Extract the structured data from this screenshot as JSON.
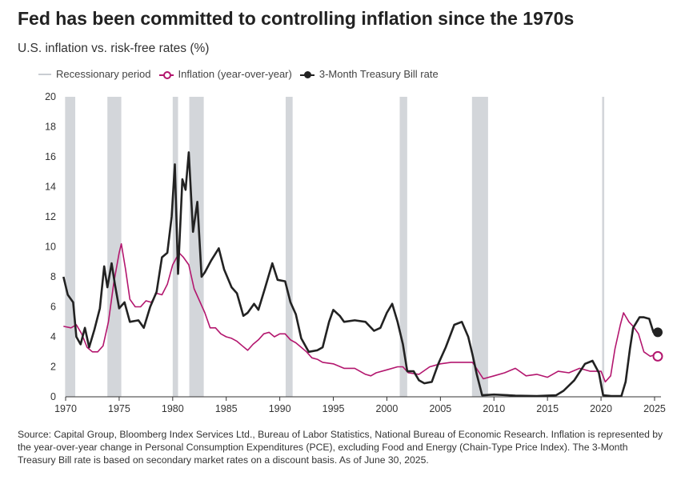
{
  "title": "Fed has been committed to controlling inflation since the 1970s",
  "subtitle": "U.S. inflation vs. risk-free rates (%)",
  "legend": {
    "recession": "Recessionary period",
    "inflation": "Inflation (year-over-year)",
    "tbill": "3-Month Treasury Bill rate"
  },
  "source": "Source: Capital Group, Bloomberg Index Services Ltd., Bureau of Labor Statistics, National Bureau of Economic Research. Inflation is represented by the year-over-year change in Personal Consumption Expenditures (PCE), excluding Food and Energy (Chain-Type Price Index). The 3-Month Treasury Bill rate is based on secondary market rates on a discount basis. As of June 30, 2025.",
  "colors": {
    "inflation": "#b3166e",
    "tbill": "#222222",
    "recession": "#d3d6da",
    "axis": "#333333"
  },
  "chart_data": {
    "type": "line",
    "xlim": [
      1970,
      2025.6
    ],
    "ylim": [
      0,
      20
    ],
    "xticks": [
      1970,
      1975,
      1980,
      1985,
      1990,
      1995,
      2000,
      2005,
      2010,
      2015,
      2020,
      2025
    ],
    "yticks": [
      0,
      2,
      4,
      6,
      8,
      10,
      12,
      14,
      16,
      18,
      20
    ],
    "grid": false,
    "legend_position": "top-left",
    "recessions": [
      [
        1969.95,
        1970.9
      ],
      [
        1973.9,
        1975.2
      ],
      [
        1980.0,
        1980.5
      ],
      [
        1981.55,
        1982.9
      ],
      [
        1990.55,
        1991.2
      ],
      [
        2001.2,
        2001.9
      ],
      [
        2007.95,
        2009.45
      ],
      [
        2020.1,
        2020.3
      ]
    ],
    "series": [
      {
        "name": "Inflation (year-over-year)",
        "end_marker": "open-circle",
        "points": [
          [
            1969.8,
            4.7
          ],
          [
            1970.5,
            4.6
          ],
          [
            1971.0,
            4.8
          ],
          [
            1971.5,
            4.2
          ],
          [
            1972.0,
            3.3
          ],
          [
            1972.5,
            3.0
          ],
          [
            1973.0,
            3.0
          ],
          [
            1973.5,
            3.4
          ],
          [
            1974.0,
            5.0
          ],
          [
            1974.5,
            7.6
          ],
          [
            1975.0,
            9.6
          ],
          [
            1975.2,
            10.2
          ],
          [
            1975.6,
            8.5
          ],
          [
            1976.0,
            6.5
          ],
          [
            1976.5,
            6.0
          ],
          [
            1977.0,
            6.0
          ],
          [
            1977.5,
            6.4
          ],
          [
            1978.0,
            6.3
          ],
          [
            1978.5,
            6.9
          ],
          [
            1979.0,
            6.8
          ],
          [
            1979.5,
            7.5
          ],
          [
            1980.0,
            8.8
          ],
          [
            1980.6,
            9.6
          ],
          [
            1981.0,
            9.3
          ],
          [
            1981.5,
            8.8
          ],
          [
            1982.0,
            7.2
          ],
          [
            1982.5,
            6.4
          ],
          [
            1983.0,
            5.6
          ],
          [
            1983.5,
            4.6
          ],
          [
            1984.0,
            4.6
          ],
          [
            1984.5,
            4.2
          ],
          [
            1985.0,
            4.0
          ],
          [
            1985.5,
            3.9
          ],
          [
            1986.0,
            3.7
          ],
          [
            1986.5,
            3.4
          ],
          [
            1987.0,
            3.1
          ],
          [
            1987.5,
            3.5
          ],
          [
            1988.0,
            3.8
          ],
          [
            1988.5,
            4.2
          ],
          [
            1989.0,
            4.3
          ],
          [
            1989.5,
            4.0
          ],
          [
            1990.0,
            4.2
          ],
          [
            1990.5,
            4.2
          ],
          [
            1991.0,
            3.8
          ],
          [
            1991.5,
            3.6
          ],
          [
            1992.0,
            3.3
          ],
          [
            1992.5,
            3.0
          ],
          [
            1993.0,
            2.6
          ],
          [
            1993.5,
            2.5
          ],
          [
            1994.0,
            2.3
          ],
          [
            1995.0,
            2.2
          ],
          [
            1996.0,
            1.9
          ],
          [
            1997.0,
            1.9
          ],
          [
            1998.0,
            1.5
          ],
          [
            1998.5,
            1.4
          ],
          [
            1999.0,
            1.6
          ],
          [
            2000.0,
            1.8
          ],
          [
            2001.0,
            2.0
          ],
          [
            2001.5,
            2.0
          ],
          [
            2002.0,
            1.6
          ],
          [
            2003.0,
            1.5
          ],
          [
            2004.0,
            2.0
          ],
          [
            2005.0,
            2.2
          ],
          [
            2006.0,
            2.3
          ],
          [
            2007.0,
            2.3
          ],
          [
            2008.0,
            2.3
          ],
          [
            2009.0,
            1.2
          ],
          [
            2010.0,
            1.4
          ],
          [
            2011.0,
            1.6
          ],
          [
            2012.0,
            1.9
          ],
          [
            2013.0,
            1.4
          ],
          [
            2014.0,
            1.5
          ],
          [
            2015.0,
            1.3
          ],
          [
            2016.0,
            1.7
          ],
          [
            2017.0,
            1.6
          ],
          [
            2018.0,
            1.9
          ],
          [
            2019.0,
            1.7
          ],
          [
            2020.0,
            1.7
          ],
          [
            2020.4,
            1.0
          ],
          [
            2020.9,
            1.4
          ],
          [
            2021.3,
            3.2
          ],
          [
            2021.8,
            4.8
          ],
          [
            2022.1,
            5.6
          ],
          [
            2022.6,
            5.0
          ],
          [
            2023.0,
            4.7
          ],
          [
            2023.5,
            4.2
          ],
          [
            2024.0,
            3.0
          ],
          [
            2024.6,
            2.7
          ],
          [
            2025.0,
            2.8
          ],
          [
            2025.3,
            2.7
          ]
        ]
      },
      {
        "name": "3-Month Treasury Bill rate",
        "end_marker": "filled-circle",
        "points": [
          [
            1969.8,
            8.0
          ],
          [
            1970.2,
            6.8
          ],
          [
            1970.7,
            6.3
          ],
          [
            1971.0,
            4.0
          ],
          [
            1971.4,
            3.5
          ],
          [
            1971.8,
            4.6
          ],
          [
            1972.2,
            3.3
          ],
          [
            1972.7,
            4.5
          ],
          [
            1973.2,
            5.9
          ],
          [
            1973.6,
            8.7
          ],
          [
            1973.9,
            7.3
          ],
          [
            1974.3,
            8.9
          ],
          [
            1974.6,
            7.5
          ],
          [
            1975.0,
            5.9
          ],
          [
            1975.5,
            6.3
          ],
          [
            1976.0,
            5.0
          ],
          [
            1976.8,
            5.1
          ],
          [
            1977.3,
            4.6
          ],
          [
            1977.9,
            6.0
          ],
          [
            1978.5,
            7.0
          ],
          [
            1979.0,
            9.3
          ],
          [
            1979.5,
            9.6
          ],
          [
            1979.9,
            12.0
          ],
          [
            1980.2,
            15.5
          ],
          [
            1980.5,
            8.2
          ],
          [
            1980.9,
            14.5
          ],
          [
            1981.2,
            13.8
          ],
          [
            1981.5,
            16.3
          ],
          [
            1981.9,
            11.0
          ],
          [
            1982.3,
            13.0
          ],
          [
            1982.7,
            8.0
          ],
          [
            1983.0,
            8.3
          ],
          [
            1983.6,
            9.1
          ],
          [
            1984.3,
            9.9
          ],
          [
            1984.8,
            8.5
          ],
          [
            1985.5,
            7.3
          ],
          [
            1986.0,
            6.9
          ],
          [
            1986.6,
            5.4
          ],
          [
            1987.0,
            5.6
          ],
          [
            1987.6,
            6.2
          ],
          [
            1988.0,
            5.8
          ],
          [
            1988.6,
            7.2
          ],
          [
            1989.3,
            8.9
          ],
          [
            1989.8,
            7.8
          ],
          [
            1990.5,
            7.7
          ],
          [
            1991.0,
            6.3
          ],
          [
            1991.5,
            5.5
          ],
          [
            1992.0,
            3.9
          ],
          [
            1992.7,
            3.0
          ],
          [
            1993.5,
            3.1
          ],
          [
            1994.0,
            3.3
          ],
          [
            1994.6,
            5.0
          ],
          [
            1995.0,
            5.8
          ],
          [
            1995.6,
            5.4
          ],
          [
            1996.0,
            5.0
          ],
          [
            1997.0,
            5.1
          ],
          [
            1998.0,
            5.0
          ],
          [
            1998.8,
            4.4
          ],
          [
            1999.4,
            4.6
          ],
          [
            2000.0,
            5.6
          ],
          [
            2000.5,
            6.2
          ],
          [
            2001.0,
            5.0
          ],
          [
            2001.5,
            3.5
          ],
          [
            2001.9,
            1.7
          ],
          [
            2002.5,
            1.7
          ],
          [
            2003.0,
            1.1
          ],
          [
            2003.5,
            0.9
          ],
          [
            2004.2,
            1.0
          ],
          [
            2004.8,
            2.2
          ],
          [
            2005.5,
            3.3
          ],
          [
            2006.3,
            4.8
          ],
          [
            2007.0,
            5.0
          ],
          [
            2007.6,
            4.0
          ],
          [
            2008.0,
            2.8
          ],
          [
            2008.4,
            1.5
          ],
          [
            2008.9,
            0.1
          ],
          [
            2010.0,
            0.15
          ],
          [
            2012.0,
            0.08
          ],
          [
            2014.0,
            0.05
          ],
          [
            2015.8,
            0.1
          ],
          [
            2016.5,
            0.4
          ],
          [
            2017.5,
            1.1
          ],
          [
            2018.5,
            2.2
          ],
          [
            2019.2,
            2.4
          ],
          [
            2019.8,
            1.6
          ],
          [
            2020.2,
            0.1
          ],
          [
            2021.0,
            0.05
          ],
          [
            2021.9,
            0.05
          ],
          [
            2022.3,
            1.0
          ],
          [
            2022.7,
            3.2
          ],
          [
            2023.0,
            4.6
          ],
          [
            2023.6,
            5.3
          ],
          [
            2024.0,
            5.3
          ],
          [
            2024.5,
            5.2
          ],
          [
            2024.9,
            4.3
          ],
          [
            2025.3,
            4.3
          ]
        ]
      }
    ]
  }
}
